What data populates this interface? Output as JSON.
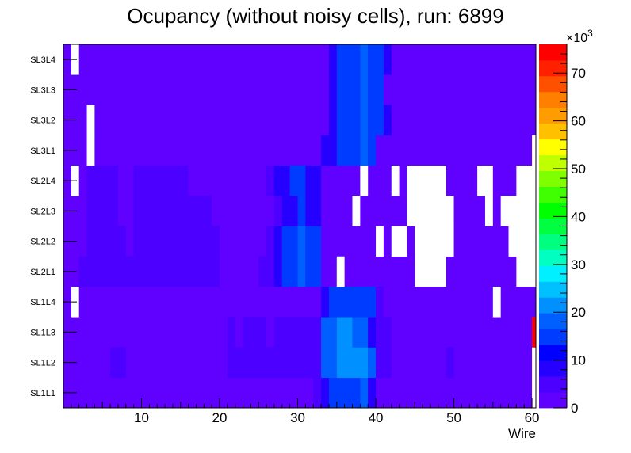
{
  "chart_data": {
    "type": "heatmap",
    "title": "Ocupancy (without noisy cells), run: 6899",
    "xlabel": "Wire",
    "ylabel": "",
    "xlim": [
      0,
      60.5
    ],
    "x_ticks": [
      "10",
      "20",
      "30",
      "40",
      "50",
      "60"
    ],
    "x_tick_values": [
      10,
      20,
      30,
      40,
      50,
      60
    ],
    "rows": [
      "SL1L1",
      "SL1L2",
      "SL1L3",
      "SL1L4",
      "SL2L1",
      "SL2L2",
      "SL2L3",
      "SL2L4",
      "SL3L1",
      "SL3L2",
      "SL3L3",
      "SL3L4"
    ],
    "zlim": [
      0,
      76000
    ],
    "z_ticks": [
      "0",
      "10",
      "20",
      "30",
      "40",
      "50",
      "60",
      "70"
    ],
    "z_tick_values": [
      0,
      10,
      20,
      30,
      40,
      50,
      60,
      70
    ],
    "z_multiplier": "×10",
    "z_exponent": "3",
    "palette": [
      "#6000ff",
      "#4c00ff",
      "#2600ff",
      "#0000ff",
      "#003cff",
      "#0060ff",
      "#0090ff",
      "#00c0ff",
      "#00f0ff",
      "#00ffc0",
      "#00ff80",
      "#00ff40",
      "#00ff00",
      "#40ff00",
      "#80ff00",
      "#c0ff00",
      "#ffff00",
      "#ffc000",
      "#ff9c00",
      "#ff8000",
      "#ff5000",
      "#ff2000",
      "#ff0000"
    ],
    "background_color": "#6000ff",
    "row_segments": [
      [
        [
          32,
          33,
          "#4c00ff"
        ],
        [
          33,
          34,
          "#2600ff"
        ],
        [
          34,
          38,
          "#003cff"
        ],
        [
          38,
          39,
          "#0060ff"
        ],
        [
          39,
          40,
          "#2600ff"
        ],
        [
          60,
          61,
          "empty"
        ]
      ],
      [
        [
          6,
          8,
          "#4c00ff"
        ],
        [
          21,
          33,
          "#4c00ff"
        ],
        [
          33,
          35,
          "#0060ff"
        ],
        [
          35,
          39,
          "#0090ff"
        ],
        [
          39,
          40,
          "#0060ff"
        ],
        [
          40,
          42,
          "#4c00ff"
        ],
        [
          49,
          50,
          "#4c00ff"
        ],
        [
          60,
          61,
          "empty"
        ]
      ],
      [
        [
          21,
          22,
          "#4c00ff"
        ],
        [
          23,
          26,
          "#4c00ff"
        ],
        [
          27,
          33,
          "#4c00ff"
        ],
        [
          33,
          35,
          "#0060ff"
        ],
        [
          35,
          37,
          "#0090ff"
        ],
        [
          37,
          39,
          "#0060ff"
        ],
        [
          39,
          40,
          "#2600ff"
        ],
        [
          40,
          42,
          "#4c00ff"
        ],
        [
          60,
          61,
          "#ff0000"
        ]
      ],
      [
        [
          1,
          2,
          "empty"
        ],
        [
          33,
          34,
          "#2600ff"
        ],
        [
          34,
          40,
          "#003cff"
        ],
        [
          40,
          41,
          "#4c00ff"
        ],
        [
          55,
          56,
          "empty"
        ]
      ],
      [
        [
          2,
          20,
          "#4c00ff"
        ],
        [
          25,
          27,
          "#4c00ff"
        ],
        [
          27,
          28,
          "#2600ff"
        ],
        [
          28,
          30,
          "#003cff"
        ],
        [
          30,
          31,
          "#0060ff"
        ],
        [
          31,
          33,
          "#003cff"
        ],
        [
          35,
          36,
          "empty"
        ],
        [
          45,
          49,
          "empty"
        ],
        [
          58,
          61,
          "empty"
        ]
      ],
      [
        [
          3,
          8,
          "#4c00ff"
        ],
        [
          9,
          20,
          "#4c00ff"
        ],
        [
          26,
          27,
          "#4c00ff"
        ],
        [
          27,
          28,
          "#2600ff"
        ],
        [
          28,
          30,
          "#003cff"
        ],
        [
          30,
          31,
          "#0060ff"
        ],
        [
          31,
          33,
          "#003cff"
        ],
        [
          40,
          41,
          "empty"
        ],
        [
          42,
          44,
          "empty"
        ],
        [
          45,
          50,
          "empty"
        ],
        [
          57,
          61,
          "empty"
        ]
      ],
      [
        [
          3,
          7,
          "#4c00ff"
        ],
        [
          9,
          19,
          "#4c00ff"
        ],
        [
          27,
          28,
          "#4c00ff"
        ],
        [
          28,
          30,
          "#2600ff"
        ],
        [
          30,
          31,
          "#003cff"
        ],
        [
          31,
          33,
          "#2600ff"
        ],
        [
          37,
          38,
          "empty"
        ],
        [
          44,
          50,
          "empty"
        ],
        [
          54,
          55,
          "empty"
        ],
        [
          56,
          61,
          "empty"
        ]
      ],
      [
        [
          1,
          2,
          "empty"
        ],
        [
          3,
          7,
          "#4c00ff"
        ],
        [
          9,
          16,
          "#4c00ff"
        ],
        [
          26,
          27,
          "#4c00ff"
        ],
        [
          27,
          29,
          "#2600ff"
        ],
        [
          29,
          31,
          "#003cff"
        ],
        [
          31,
          33,
          "#2600ff"
        ],
        [
          38,
          39,
          "empty"
        ],
        [
          42,
          43,
          "empty"
        ],
        [
          44,
          49,
          "empty"
        ],
        [
          53,
          55,
          "empty"
        ],
        [
          58,
          61,
          "empty"
        ]
      ],
      [
        [
          3,
          4,
          "empty"
        ],
        [
          33,
          35,
          "#2600ff"
        ],
        [
          35,
          38,
          "#003cff"
        ],
        [
          38,
          39,
          "#0060ff"
        ],
        [
          39,
          40,
          "#003cff"
        ],
        [
          60,
          61,
          "empty"
        ]
      ],
      [
        [
          3,
          4,
          "empty"
        ],
        [
          34,
          35,
          "#2600ff"
        ],
        [
          35,
          38,
          "#003cff"
        ],
        [
          38,
          39,
          "#0060ff"
        ],
        [
          39,
          41,
          "#003cff"
        ],
        [
          41,
          42,
          "#2600ff"
        ]
      ],
      [
        [
          34,
          35,
          "#2600ff"
        ],
        [
          35,
          38,
          "#003cff"
        ],
        [
          38,
          39,
          "#0060ff"
        ],
        [
          39,
          41,
          "#003cff"
        ]
      ],
      [
        [
          1,
          2,
          "empty"
        ],
        [
          34,
          35,
          "#2600ff"
        ],
        [
          35,
          38,
          "#003cff"
        ],
        [
          38,
          39,
          "#0060ff"
        ],
        [
          39,
          41,
          "#003cff"
        ],
        [
          41,
          42,
          "#2600ff"
        ]
      ]
    ]
  }
}
